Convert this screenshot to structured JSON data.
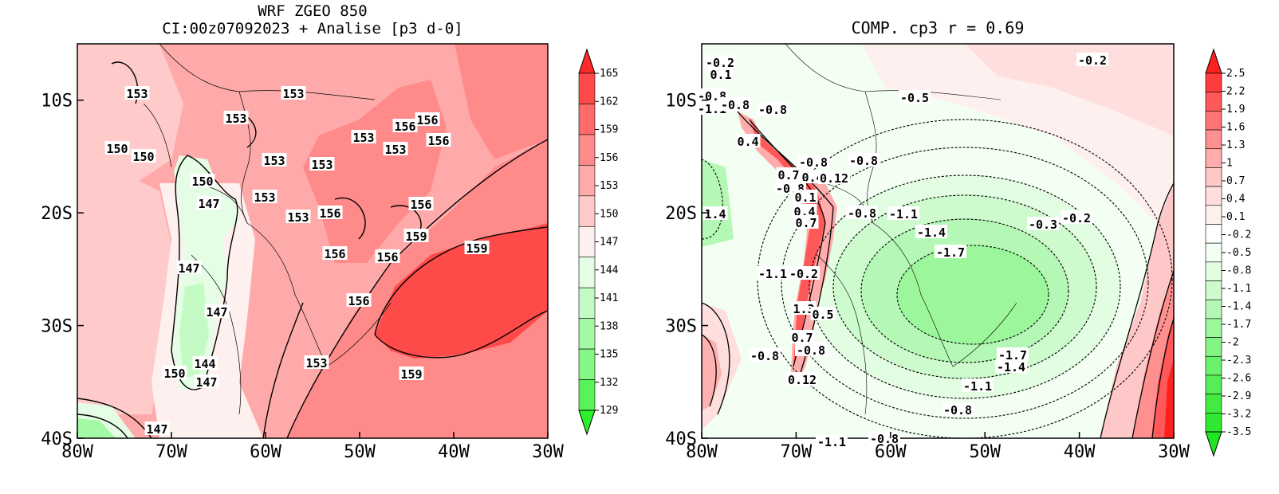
{
  "left_panel": {
    "title_line1": "WRF ZGEO 850",
    "title_line2": "CI:00z07092023 + Analise  [p3 d-0]",
    "x_ticks": [
      "80W",
      "70W",
      "60W",
      "50W",
      "40W",
      "30W"
    ],
    "y_ticks": [
      "10S",
      "20S",
      "30S",
      "40S"
    ],
    "colorbar_labels": [
      "165",
      "162",
      "159",
      "156",
      "153",
      "150",
      "147",
      "144",
      "141",
      "138",
      "135",
      "132",
      "129"
    ],
    "colorbar_colors": [
      "#ff2a2a",
      "#ff4a4a",
      "#ff6a6a",
      "#ff8a8a",
      "#ffaaaa",
      "#ffcaca",
      "#fff0f0",
      "#e4fde4",
      "#c4fbc4",
      "#a4f9a4",
      "#84f784",
      "#58f358",
      "#2cf02c"
    ],
    "contour_labels": [
      "153",
      "153",
      "153",
      "150",
      "150",
      "153",
      "153",
      "153",
      "153",
      "156",
      "156",
      "156",
      "150",
      "147",
      "153",
      "153",
      "156",
      "156",
      "159",
      "159",
      "156",
      "156",
      "147",
      "156",
      "147",
      "144",
      "147",
      "150",
      "153",
      "159",
      "147"
    ]
  },
  "right_panel": {
    "title": "COMP. cp3  r =  0.69",
    "x_ticks": [
      "80W",
      "70W",
      "60W",
      "50W",
      "40W",
      "30W"
    ],
    "y_ticks": [
      "10S",
      "20S",
      "30S",
      "40S"
    ],
    "colorbar_labels": [
      "2.5",
      "2.2",
      "1.9",
      "1.6",
      "1.3",
      "1",
      "0.7",
      "0.4",
      "0.1",
      "-0.2",
      "-0.5",
      "-0.8",
      "-1.1",
      "-1.4",
      "-1.7",
      "-2",
      "-2.3",
      "-2.6",
      "-2.9",
      "-3.2",
      "-3.5"
    ],
    "colorbar_colors": [
      "#ff2020",
      "#ff3c3c",
      "#ff5858",
      "#ff7474",
      "#ff9090",
      "#ffacac",
      "#ffc8c8",
      "#ffdede",
      "#fff0f0",
      "#ffffff",
      "#f2fff2",
      "#e2fde2",
      "#cdfbcd",
      "#b5f8b5",
      "#9cf69c",
      "#84f484",
      "#6cf16c",
      "#56ee56",
      "#42eb42",
      "#30e830",
      "#22e522"
    ],
    "contour_labels": [
      "-0.2",
      "0.1",
      "-0.8",
      "-1.1",
      "-0.8",
      "-0.8",
      "0.4",
      "-0.5",
      "-0.2",
      "-0.8",
      "-0.8",
      "0.7",
      "0.4",
      "0.12",
      "-0.8",
      "0.1",
      "1.4",
      "-0.8",
      "-1.1",
      "-1.4",
      "0.4",
      "0.7",
      "-0.3",
      "-0.2",
      "-1.7",
      "-0.2",
      "-1.1",
      "1.3",
      "0.5",
      "0.7",
      "-0.8",
      "-0.8",
      "-1.7",
      "-1.4",
      "0.12",
      "-1.1",
      "-1.1",
      "-0.8",
      "-0.8"
    ]
  }
}
